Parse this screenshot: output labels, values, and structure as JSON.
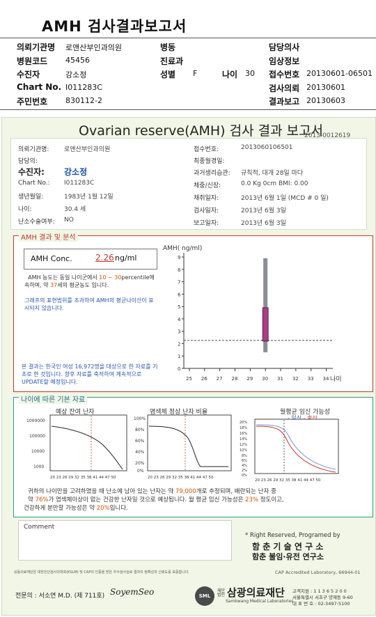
{
  "header": {
    "title": "AMH 검사결과보고서",
    "rows": [
      [
        {
          "k": "의뢰기관명",
          "v": "로앤산부인과의원"
        },
        {
          "k": "병동",
          "v": ""
        },
        {
          "k": "담당의사",
          "v": ""
        }
      ],
      [
        {
          "k": "병원코드",
          "v": "45456"
        },
        {
          "k": "진료과",
          "v": ""
        },
        {
          "k": "임상정보",
          "v": ""
        }
      ],
      [
        {
          "k": "수진자",
          "v": "강소정"
        },
        {
          "k": "성별",
          "v": "F"
        },
        {
          "k": "접수번호",
          "v": "20130601-06501"
        }
      ],
      [
        {
          "k": "Chart No.",
          "v": "I011283C"
        },
        {
          "k": "",
          "v": ""
        },
        {
          "k": "검사의뢰",
          "v": "20130601"
        }
      ],
      [
        {
          "k": "주민번호",
          "v": "830112-2"
        },
        {
          "k": "",
          "v": ""
        },
        {
          "k": "결과보고",
          "v": "20130603"
        }
      ]
    ],
    "age_label": "나이",
    "age_value": "30"
  },
  "report": {
    "title": "Ovarian reserve(AMH) 검사 결과 보고서",
    "serial": "2013-0012619",
    "left": [
      {
        "k": "의뢰기관명:",
        "v": "로앤산부인과의원"
      },
      {
        "k": "담당의:",
        "v": ""
      },
      {
        "k": "수진자:",
        "v": "강소정"
      },
      {
        "k": "Chart No.:",
        "v": "I011283C"
      },
      {
        "k": "생년월일:",
        "v": "1983년 1월 12일"
      },
      {
        "k": "나이:",
        "v": "30.4 세"
      },
      {
        "k": "난소수술여부:",
        "v": "NO"
      }
    ],
    "right": [
      {
        "k": "접수번호:",
        "v": "2013060106501"
      },
      {
        "k": "최종월경일:",
        "v": ""
      },
      {
        "k": "과거생리습관:",
        "v": "규칙적, 대개  28일 마다"
      },
      {
        "k": "체중/신장:",
        "v": "0.0 Kg         0cm   BMI:   0.00"
      },
      {
        "k": "채취일자:",
        "v": "2013년 6월 1일    (MCD # 0 일)"
      },
      {
        "k": "검사일자:",
        "v": "2013년 6월 3일"
      },
      {
        "k": "보고일자:",
        "v": "2013년 6월 3일"
      }
    ],
    "amh_section": "AMH 결과 및 분석",
    "amh_label": "AMH Conc.",
    "amh_value": "2.26",
    "amh_unit": "ng/ml",
    "interp_1a": "AMH 농도는 동일 나이군에서 ",
    "interp_1b": "10 ~ 30",
    "interp_1c": "percentile에 속하며, 약 ",
    "interp_1d": "37",
    "interp_1e": "세의 평균농도 입니다.",
    "interp_2": "그래프의 표현범위를 초과하여 AMH의 평균나이선이 표시되지 않습니다.",
    "footnote": "본 결과는 한국인 여성 16,972명을 대상으로 한 자료를 기초로 한 것입니다. 향후 자료를 축적하여 계속적으로 UPDATE할 예정입니다.",
    "basic_section": "나이에 따른 기본 자료",
    "mini_titles": [
      "예상 잔여 난자",
      "염색체 정상 난자 비율",
      "월평균 임신 가능성"
    ],
    "mini3_legend_a": "- 임신",
    "mini3_legend_b": "- 출산",
    "mini1_y": [
      "1000000",
      "100000",
      "10000",
      "1000"
    ],
    "mini2_y": [
      "100%",
      "80%",
      "60%",
      "40%",
      "20%",
      "0%"
    ],
    "mini3_y": [
      "20%",
      "18%",
      "16%",
      "14%",
      "12%",
      "10%",
      "8%",
      "6%",
      "4%",
      "2%",
      "0%"
    ],
    "mini_x": "20 23 26 29 32 35 38 41 44 47 50",
    "summary_1a": "귀하의 나이만을 고려하였을 때 난소에 남아 있는 난자는 약 ",
    "summary_1b": "79,000",
    "summary_1c": "개로 추정되며, 배란되는 난자 중",
    "summary_2a": "약 ",
    "summary_2b": "76%",
    "summary_2c": "가 염색체이상이 없는 건강한 난자일 것으로 예상됩니다. 월 평균 임신 가능성은 ",
    "summary_2d": "23%",
    "summary_2e": " 정도이고,",
    "summary_3a": "건강하게 분만할 가능성은 약 ",
    "summary_3b": "20%",
    "summary_3c": "입니다.",
    "comment_label": "Comment",
    "rights": "* Right Reserved, Programed by",
    "org1": "함 춘  기 술  연 구 소",
    "org2": "함춘 불임·유전 연구소",
    "footer_notice": "상동의료재단은 대한진단검사의학회(KSLM) 및 CAP의 인증을 받은 우수검사실로 결과의 정확성과 신뢰도를 보증합니다.",
    "cap": "CAP  Accredited  Laboratory,  66944-01",
    "doctor": "전문의 : 서소연 M.D. (제 711호)",
    "signature": "SoyemSeo",
    "lab_name": "삼광의료재단",
    "lab_prefix": "재단 법인",
    "lab_en": "Samkwang Medical Laboratories",
    "lab_badge": "SML",
    "contact1": "고객지원 : 1 1 3 6 5 2 0 0",
    "contact2": "서울특별시 서초구 양재동 9-60",
    "contact3": "대 표 번 호 : 02-3497-5100"
  },
  "chart_data": {
    "type": "bar",
    "title": "",
    "ylabel": "AMH( ng/ml)",
    "xlabel": "나이",
    "categories": [
      25,
      26,
      27,
      28,
      29,
      30,
      31,
      32,
      33,
      34
    ],
    "ylim": [
      0,
      9
    ],
    "yticks": [
      0,
      1,
      2,
      3,
      4,
      5,
      6,
      7,
      8,
      9
    ],
    "range_bar": {
      "x": 30,
      "low": 1.3,
      "high": 8.9,
      "color": "#8a8f96"
    },
    "percentile_box": {
      "x": 30,
      "low": 2.2,
      "high": 4.9,
      "color": "#b03a8c"
    },
    "reference_line": 2.26,
    "colors": {
      "axis": "#333333",
      "dashed": "#333333"
    }
  }
}
